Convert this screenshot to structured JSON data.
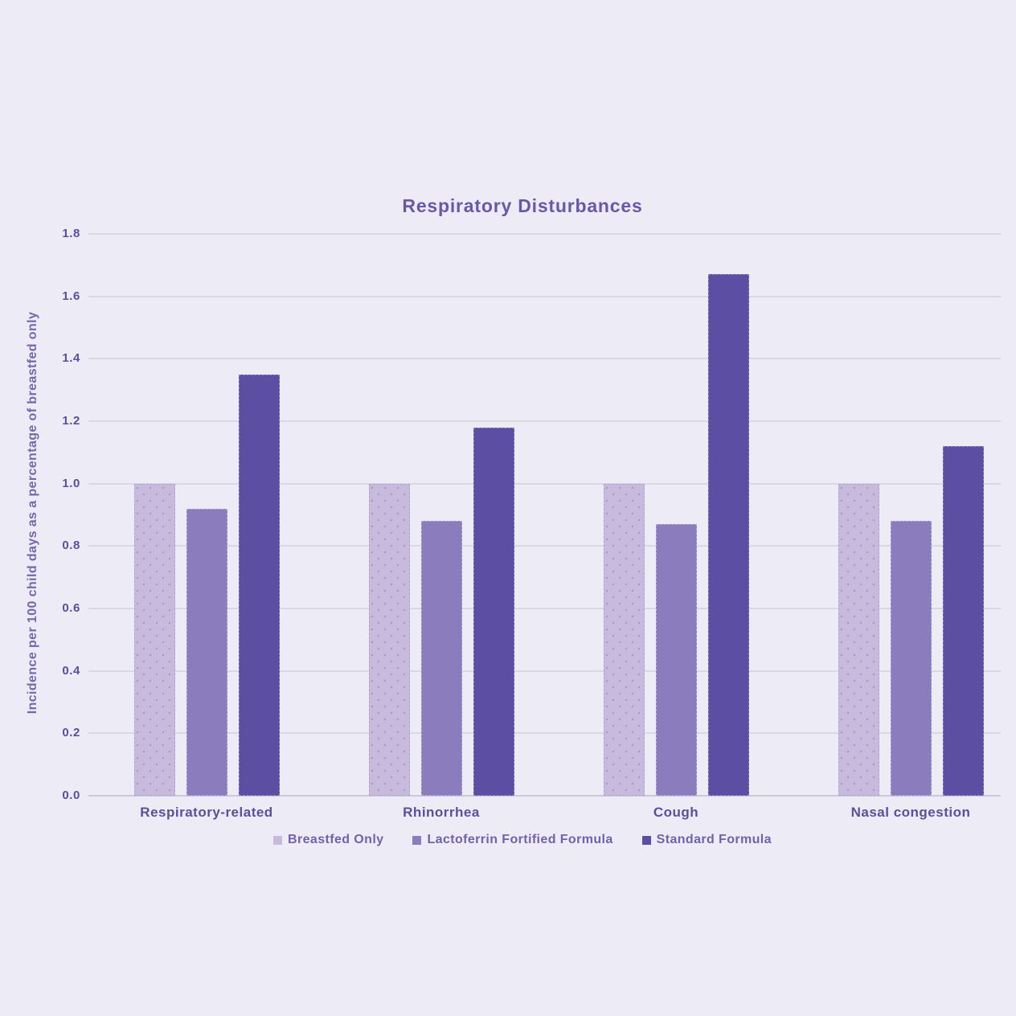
{
  "title": "Respiratory Disturbances",
  "chart_data": {
    "type": "bar",
    "title": "Respiratory Disturbances",
    "categories": [
      "Respiratory-related",
      "Rhinorrhea",
      "Cough",
      "Nasal congestion"
    ],
    "series": [
      {
        "name": "Breastfed Only",
        "color": "#c7badd",
        "pattern": "dots",
        "values": [
          1.0,
          1.0,
          1.0,
          1.0
        ]
      },
      {
        "name": "Lactoferrin Fortified Formula",
        "color": "#8a7cbd",
        "pattern": "solid",
        "values": [
          0.92,
          0.88,
          0.87,
          0.88
        ]
      },
      {
        "name": "Standard Formula",
        "color": "#5c4ea3",
        "pattern": "solid",
        "values": [
          1.35,
          1.18,
          1.67,
          1.12
        ]
      }
    ],
    "xlabel": "",
    "ylabel": "Incidence per 100 child days as a percentage of breastfed only",
    "ylim": [
      0,
      1.8
    ],
    "ytick_step": 0.2,
    "ytick_labels": [
      "0.0",
      "0.2",
      "0.4",
      "0.6",
      "0.8",
      "1.0",
      "1.2",
      "1.4",
      "1.6",
      "1.8"
    ],
    "grid": true,
    "legend_position": "bottom"
  },
  "colors": {
    "background": "#edebf5",
    "title_text": "#6858a9",
    "axis_text": "#5c4e9e",
    "y_axis_title_text": "#7566ad",
    "legend_text": "#7162ab",
    "gridline": "#dcd9e6",
    "bar_dot_pattern": "#a596c6"
  }
}
